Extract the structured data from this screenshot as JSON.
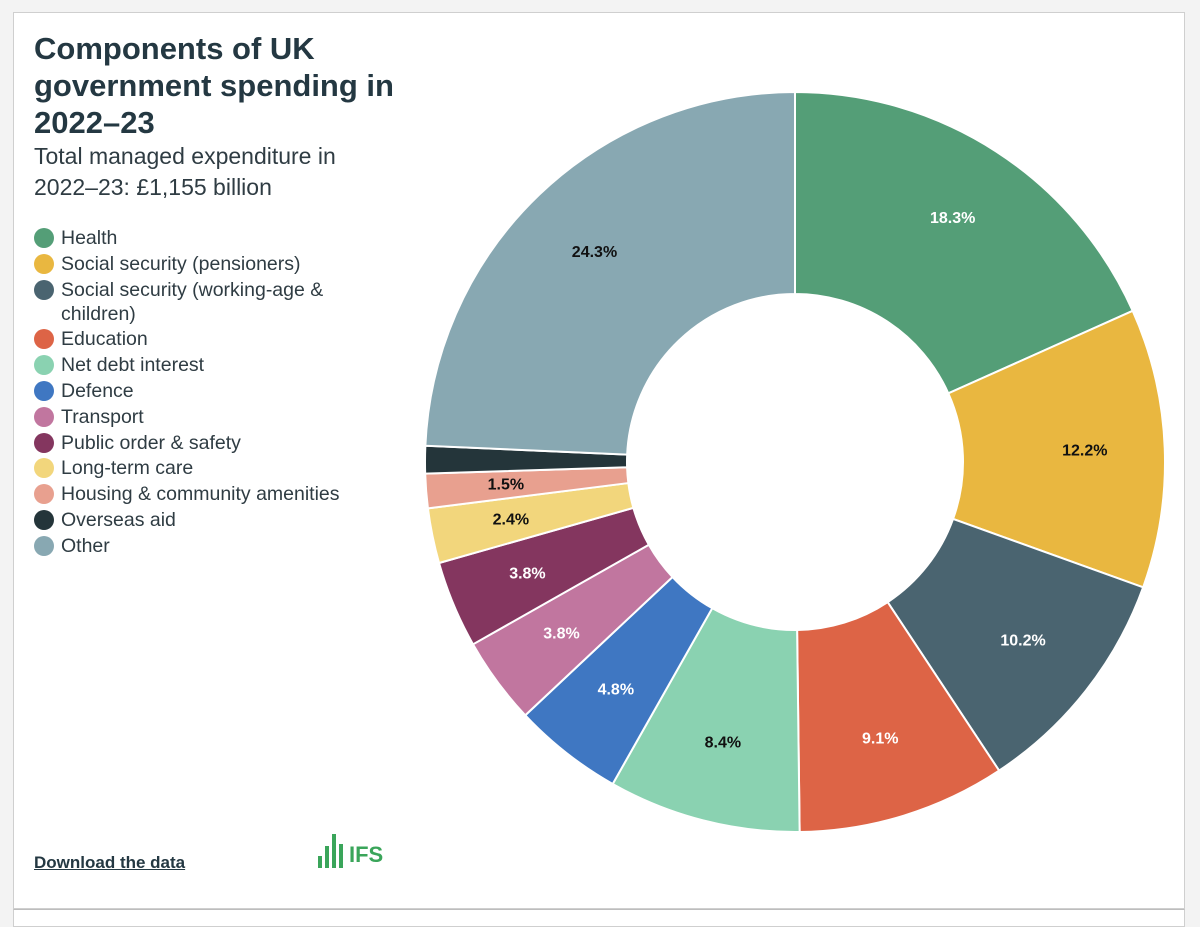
{
  "title": "Components of UK government spending in 2022–23",
  "subtitle": "Total managed expenditure in 2022–23: £1,155 billion",
  "download_label": "Download the data",
  "logo_text": "IFS",
  "chart_data": {
    "type": "pie",
    "donut": true,
    "unit": "%",
    "title": "Components of UK government spending in 2022–23",
    "subtitle": "Total managed expenditure in 2022–23: £1,155 billion",
    "legend_position": "left",
    "series": [
      {
        "name": "Health",
        "value": 18.3,
        "label": "18.3%",
        "color": "#549e77",
        "label_color": "#ffffff"
      },
      {
        "name": "Social security (pensioners)",
        "value": 12.2,
        "label": "12.2%",
        "color": "#e9b740",
        "label_color": "#111111"
      },
      {
        "name": "Social security (working-age & children)",
        "value": 10.2,
        "label": "10.2%",
        "color": "#4a6470",
        "label_color": "#ffffff"
      },
      {
        "name": "Education",
        "value": 9.1,
        "label": "9.1%",
        "color": "#dd6446",
        "label_color": "#ffffff"
      },
      {
        "name": "Net debt interest",
        "value": 8.4,
        "label": "8.4%",
        "color": "#8ad2b1",
        "label_color": "#111111"
      },
      {
        "name": "Defence",
        "value": 4.8,
        "label": "4.8%",
        "color": "#3f77c2",
        "label_color": "#ffffff"
      },
      {
        "name": "Transport",
        "value": 3.8,
        "label": "3.8%",
        "color": "#c1769f",
        "label_color": "#ffffff"
      },
      {
        "name": "Public order & safety",
        "value": 3.8,
        "label": "3.8%",
        "color": "#84365f",
        "label_color": "#ffffff"
      },
      {
        "name": "Long-term care",
        "value": 2.4,
        "label": "2.4%",
        "color": "#f2d67c",
        "label_color": "#111111"
      },
      {
        "name": "Housing & community amenities",
        "value": 1.5,
        "label": "1.5%",
        "color": "#e8a08f",
        "label_color": "#111111"
      },
      {
        "name": "Overseas aid",
        "value": 1.2,
        "label": "",
        "color": "#24353a",
        "label_color": "#ffffff"
      },
      {
        "name": "Other",
        "value": 24.3,
        "label": "24.3%",
        "color": "#88a8b2",
        "label_color": "#111111"
      }
    ]
  }
}
